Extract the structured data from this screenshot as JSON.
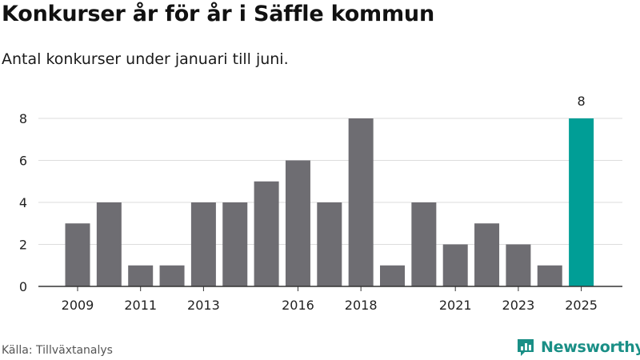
{
  "header": {
    "title": "Konkurser år för år i Säffle kommun",
    "subtitle": "Antal konkurser under januari till juni."
  },
  "footer": {
    "source": "Källa: Tillväxtanalys",
    "brand": "Newsworthy"
  },
  "colors": {
    "bar": "#6e6d72",
    "highlight": "#009e96",
    "grid": "#dddddd",
    "axis": "#333333",
    "brand": "#1a8f86"
  },
  "chart_data": {
    "type": "bar",
    "title": "Konkurser år för år i Säffle kommun",
    "subtitle": "Antal konkurser under januari till juni.",
    "categories": [
      "2009",
      "2010",
      "2011",
      "2012",
      "2013",
      "2014",
      "2015",
      "2016",
      "2017",
      "2018",
      "2019",
      "2020",
      "2021",
      "2022",
      "2023",
      "2024",
      "2025"
    ],
    "values": [
      3,
      4,
      1,
      1,
      4,
      4,
      5,
      6,
      4,
      8,
      1,
      4,
      2,
      3,
      2,
      1,
      8
    ],
    "x_tick_labels": [
      "2009",
      "2011",
      "2013",
      "2016",
      "2018",
      "2021",
      "2023",
      "2025"
    ],
    "y_ticks": [
      0,
      2,
      4,
      6,
      8
    ],
    "ylim": [
      0,
      8
    ],
    "xlabel": "",
    "ylabel": "",
    "grid": true,
    "highlight_category": "2025",
    "highlight_label": "8"
  }
}
